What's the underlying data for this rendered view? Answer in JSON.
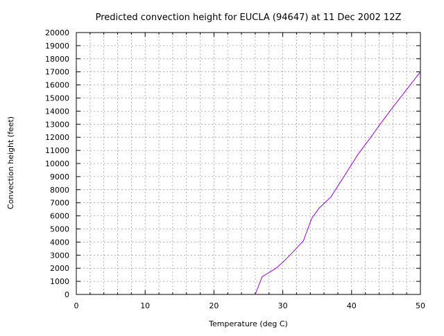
{
  "chart_data": {
    "type": "line",
    "title": "Predicted convection height for EUCLA (94647) at 11 Dec 2002 12Z",
    "xlabel": "Temperature (deg C)",
    "ylabel": "Convection height (feet)",
    "xlim": [
      0,
      50
    ],
    "ylim": [
      0,
      20000
    ],
    "x_ticks": [
      0,
      10,
      20,
      30,
      40,
      50
    ],
    "x_minor_step": 2,
    "y_ticks": [
      0,
      1000,
      2000,
      3000,
      4000,
      5000,
      6000,
      7000,
      8000,
      9000,
      10000,
      11000,
      12000,
      13000,
      14000,
      15000,
      16000,
      17000,
      18000,
      19000,
      20000
    ],
    "grid": true,
    "series": [
      {
        "color": "#9400d3",
        "x": [
          26.0,
          27.0,
          29.0,
          30.0,
          31.5,
          33.0,
          34.2,
          35.3,
          37.0,
          39.0,
          41.0,
          43.0,
          44.0,
          46.0,
          48.0,
          50.0
        ],
        "y": [
          0,
          1350,
          2000,
          2450,
          3250,
          4100,
          5800,
          6600,
          7450,
          9100,
          10750,
          12150,
          12900,
          14300,
          15650,
          17000
        ]
      }
    ]
  }
}
